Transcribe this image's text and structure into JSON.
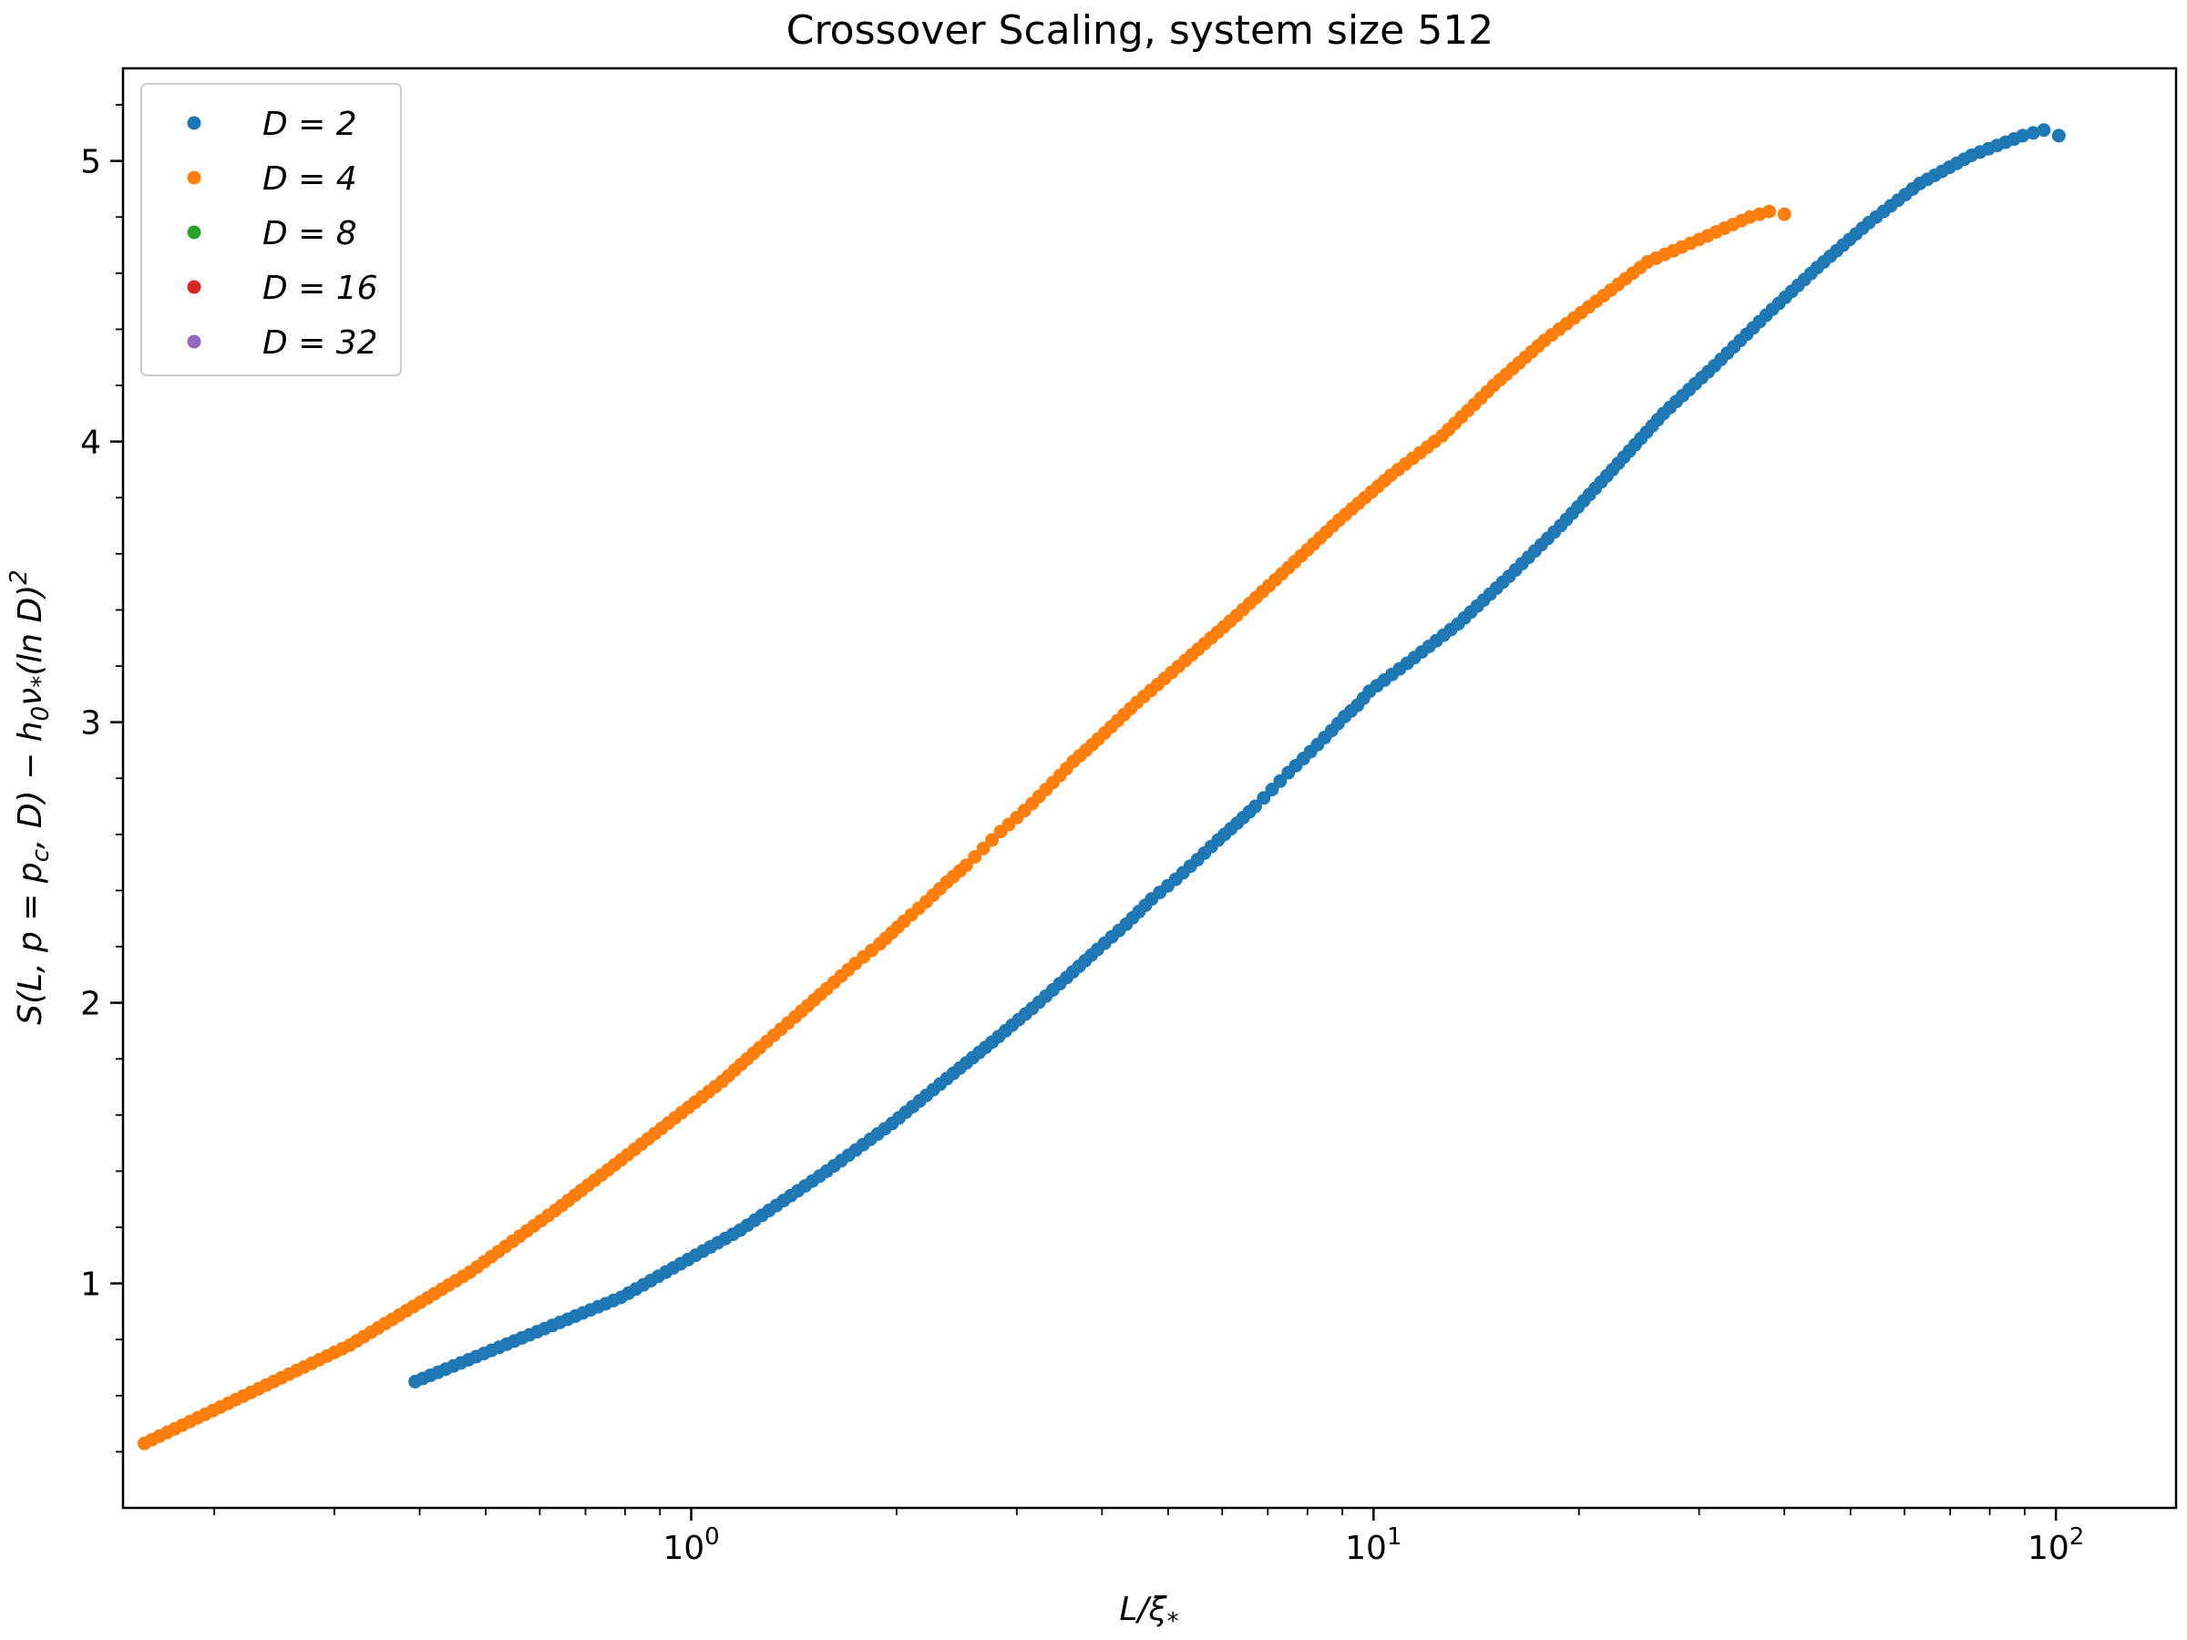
{
  "chart_data": {
    "type": "scatter",
    "title": "Crossover Scaling, system size 512",
    "xlabel": "L/ξ*",
    "ylabel": "S(L, p = p_c, D) − h0 ν* (ln D)^2",
    "xscale": "log",
    "xlim": [
      0.147,
      150
    ],
    "ylim": [
      0.2,
      5.33
    ],
    "x_major_ticks": [
      1,
      10,
      100
    ],
    "x_tick_labels": [
      {
        "base": "10",
        "exp": "0"
      },
      {
        "base": "10",
        "exp": "1"
      },
      {
        "base": "10",
        "exp": "2"
      }
    ],
    "y_ticks": [
      1,
      2,
      3,
      4,
      5
    ],
    "y_minor_ticks": [
      0.4,
      0.6,
      0.8,
      1.2,
      1.4,
      1.6,
      1.8,
      2.2,
      2.4,
      2.6,
      2.8,
      3.2,
      3.4,
      3.6,
      3.8,
      4.2,
      4.4,
      4.6,
      4.8,
      5.2
    ],
    "grid": false,
    "legend_position": "upper-left",
    "series": [
      {
        "name": "D = 2",
        "color": "#1f77b4",
        "x": [
          0.394,
          0.789,
          1.18,
          1.58,
          1.97,
          2.37,
          2.76,
          3.16,
          3.55,
          3.94,
          4.34,
          4.73,
          5.13,
          5.52,
          5.92,
          6.31,
          6.71,
          7.1,
          7.5,
          7.89,
          8.28,
          8.68,
          9.07,
          9.47,
          9.86,
          11.2,
          13.3,
          15.8,
          18.8,
          22.4,
          26.6,
          31.6,
          37.6,
          44.7,
          53.2,
          63.2,
          75.2,
          89.4,
          96.0,
          101.0
        ],
        "y": [
          0.65,
          0.95,
          1.19,
          1.4,
          1.57,
          1.73,
          1.86,
          1.98,
          2.09,
          2.19,
          2.28,
          2.37,
          2.44,
          2.51,
          2.58,
          2.64,
          2.7,
          2.76,
          2.82,
          2.87,
          2.92,
          2.97,
          3.02,
          3.06,
          3.11,
          3.21,
          3.35,
          3.52,
          3.7,
          3.9,
          4.1,
          4.27,
          4.45,
          4.62,
          4.78,
          4.92,
          5.02,
          5.09,
          5.11,
          5.09
        ]
      },
      {
        "name": "D = 4",
        "color": "#ff7f0e",
        "x": [
          0.158,
          0.316,
          0.474,
          0.632,
          0.789,
          0.947,
          1.11,
          1.26,
          1.42,
          1.58,
          1.74,
          1.89,
          2.05,
          2.21,
          2.37,
          2.53,
          2.68,
          2.84,
          3.0,
          3.16,
          3.31,
          3.47,
          3.63,
          3.79,
          3.95,
          4.5,
          5.3,
          6.3,
          7.5,
          8.9,
          10.6,
          12.6,
          15.0,
          17.8,
          21.2,
          25.2,
          30.0,
          35.6,
          38.0,
          40.0
        ],
        "y": [
          0.43,
          0.78,
          1.04,
          1.26,
          1.44,
          1.59,
          1.72,
          1.84,
          1.95,
          2.05,
          2.14,
          2.21,
          2.29,
          2.36,
          2.43,
          2.49,
          2.55,
          2.61,
          2.66,
          2.71,
          2.76,
          2.81,
          2.86,
          2.9,
          2.94,
          3.07,
          3.22,
          3.38,
          3.55,
          3.72,
          3.88,
          4.02,
          4.2,
          4.36,
          4.5,
          4.64,
          4.72,
          4.8,
          4.82,
          4.81
        ]
      },
      {
        "name": "D = 8",
        "color": "#2ca02c",
        "x": [],
        "y": []
      },
      {
        "name": "D = 16",
        "color": "#d62728",
        "x": [],
        "y": []
      },
      {
        "name": "D = 32",
        "color": "#9467bd",
        "x": [],
        "y": []
      }
    ]
  }
}
